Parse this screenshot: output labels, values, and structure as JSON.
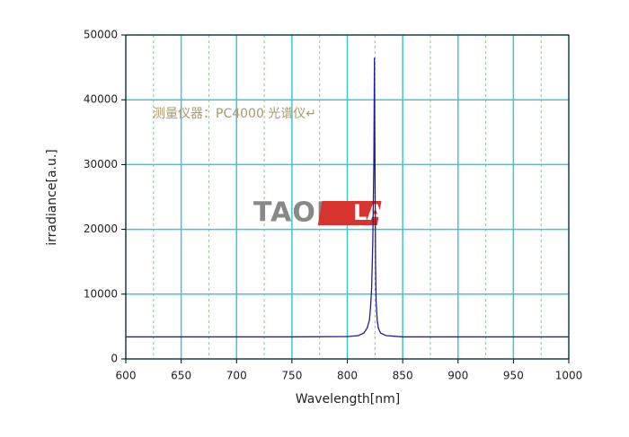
{
  "chart_data": {
    "type": "line",
    "annotation": "测量仪器：PC4000 光谱仪↵",
    "watermark": [
      "TAOR",
      "LAB"
    ],
    "x_label": "Wavelength[nm]",
    "y_label": "irradiance[a.u.]",
    "x": [
      600,
      650,
      700,
      750,
      800,
      810,
      815,
      818,
      820,
      821,
      822,
      823,
      824,
      824.5,
      825,
      825.5,
      826,
      827,
      828,
      830,
      835,
      850,
      900,
      950,
      1000
    ],
    "values": [
      3400,
      3400,
      3400,
      3400,
      3450,
      3600,
      4000,
      4800,
      6000,
      8000,
      11000,
      18000,
      30500,
      46500,
      30000,
      15000,
      9000,
      6000,
      4800,
      4000,
      3600,
      3400,
      3400,
      3400,
      3400
    ],
    "color": "#1f1f8f",
    "xlim": [
      600,
      1000
    ],
    "ylim": [
      0,
      50000
    ],
    "xticks": [
      600,
      650,
      700,
      750,
      800,
      850,
      900,
      950,
      1000
    ],
    "xminorticks": [
      625,
      675,
      725,
      775,
      825,
      875,
      925,
      975
    ],
    "yticks": [
      0,
      10000,
      20000,
      30000,
      40000,
      50000
    ],
    "grid": true
  }
}
